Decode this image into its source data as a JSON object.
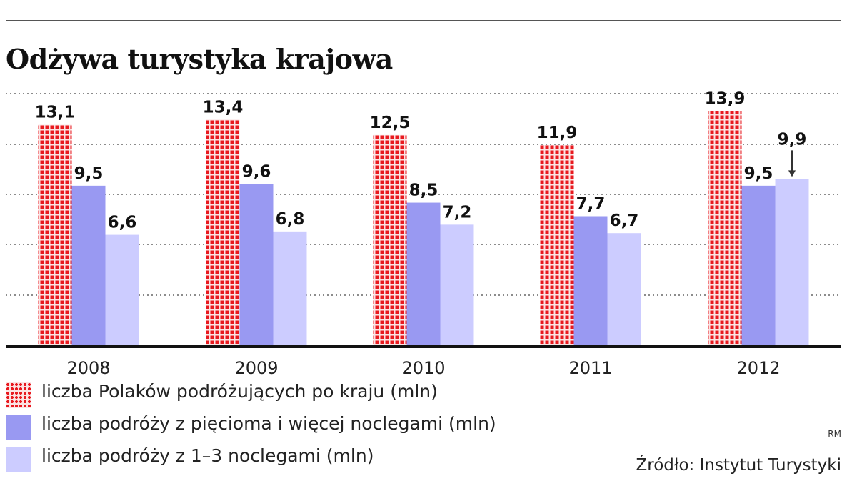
{
  "chart_data": {
    "type": "bar",
    "title": "Odżywa turystyka krajowa",
    "categories": [
      "2008",
      "2009",
      "2010",
      "2011",
      "2012"
    ],
    "series": [
      {
        "name": "liczba Polaków podróżujących po kraju (mln)",
        "values": [
          13.1,
          13.4,
          12.5,
          11.9,
          13.9
        ],
        "labels": [
          "13,1",
          "13,4",
          "12,5",
          "11,9",
          "13,9"
        ],
        "color": "#e8191f",
        "pattern": "dots"
      },
      {
        "name": "liczba podróży z pięcioma i więcej noclegami (mln)",
        "values": [
          9.5,
          9.6,
          8.5,
          7.7,
          9.5
        ],
        "labels": [
          "9,5",
          "9,6",
          "8,5",
          "7,7",
          "9,5"
        ],
        "color": "#9999f2"
      },
      {
        "name": "liczba podróży z 1–3 noclegami (mln)",
        "values": [
          6.6,
          6.8,
          7.2,
          6.7,
          9.9
        ],
        "labels": [
          "6,6",
          "6,8",
          "7,2",
          "6,7",
          "9,9"
        ],
        "color": "#ccccff"
      }
    ],
    "ylim": [
      0,
      15
    ],
    "grid": true,
    "legend": "bottom",
    "annotations": [
      {
        "text": "9,9",
        "note": "arrow pointing to 2012 bar of third series"
      }
    ]
  },
  "legend": [
    {
      "label": "liczba Polaków podróżujących po kraju (mln)",
      "color": "#e8191f",
      "pattern": "dots"
    },
    {
      "label": "liczba podróży z pięcioma i więcej noclegami (mln)",
      "color": "#9999f2"
    },
    {
      "label": "liczba podróży z 1–3 noclegami (mln)",
      "color": "#ccccff"
    }
  ],
  "credit": "RM",
  "source": "Źródło: Instytut Turystyki"
}
